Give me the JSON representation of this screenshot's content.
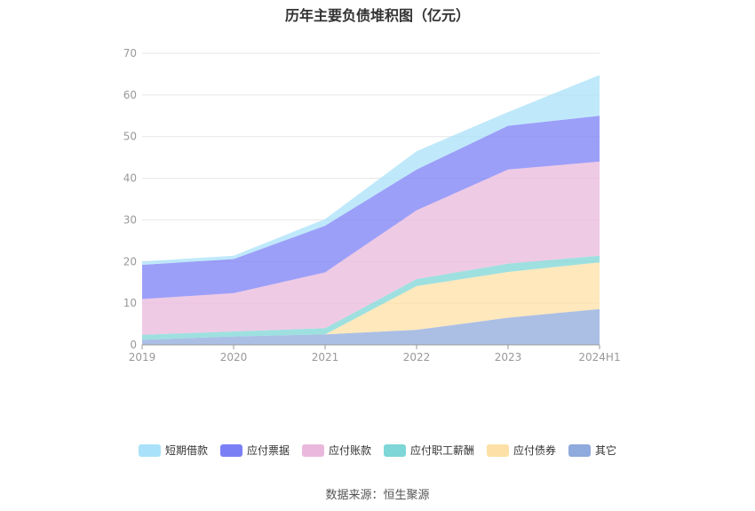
{
  "title": "历年主要负债堆积图（亿元）",
  "source_note": "数据来源：恒生聚源",
  "colors": {
    "短期借款": "#a9e1fa",
    "应付票据": "#7b7ff5",
    "应付账款": "#eab8dc",
    "应付职工薪酬": "#7ed6d6",
    "应付债券": "#fde0a6",
    "其它": "#8faadc"
  },
  "chart_data": {
    "type": "area",
    "stacked": true,
    "title": "历年主要负债堆积图（亿元）",
    "categories": [
      "2019",
      "2020",
      "2021",
      "2022",
      "2023",
      "2024H1"
    ],
    "ylim": [
      0,
      70
    ],
    "yticks": [
      0,
      10,
      20,
      30,
      40,
      50,
      60,
      70
    ],
    "grid": true,
    "legend_position": "bottom",
    "series": [
      {
        "name": "其它",
        "values": [
          1.2,
          2.0,
          2.5,
          3.6,
          6.5,
          8.6
        ]
      },
      {
        "name": "应付债券",
        "values": [
          0,
          0,
          0,
          10.5,
          11.0,
          11.2
        ]
      },
      {
        "name": "应付职工薪酬",
        "values": [
          1.2,
          1.2,
          1.5,
          1.7,
          2.0,
          1.6
        ]
      },
      {
        "name": "应付账款",
        "values": [
          8.6,
          9.2,
          13.4,
          16.5,
          22.6,
          22.6
        ]
      },
      {
        "name": "应付票据",
        "values": [
          8.2,
          8.2,
          11.2,
          9.8,
          10.5,
          11.0
        ]
      },
      {
        "name": "短期借款",
        "values": [
          0.8,
          0.8,
          1.6,
          4.4,
          3.3,
          9.8
        ]
      }
    ]
  },
  "legend_items": [
    "短期借款",
    "应付票据",
    "应付账款",
    "应付职工薪酬",
    "应付债券",
    "其它"
  ]
}
